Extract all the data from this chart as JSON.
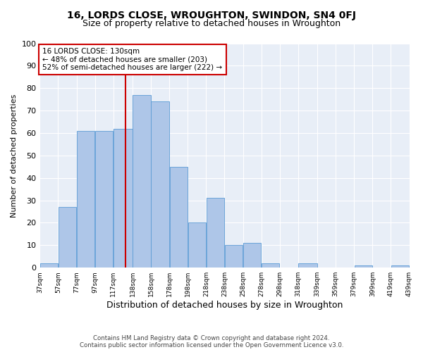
{
  "title": "16, LORDS CLOSE, WROUGHTON, SWINDON, SN4 0FJ",
  "subtitle": "Size of property relative to detached houses in Wroughton",
  "xlabel": "Distribution of detached houses by size in Wroughton",
  "ylabel": "Number of detached properties",
  "bar_edges": [
    37,
    57,
    77,
    97,
    117,
    138,
    158,
    178,
    198,
    218,
    238,
    258,
    278,
    298,
    318,
    339,
    359,
    379,
    399,
    419,
    439
  ],
  "bar_heights": [
    2,
    27,
    61,
    61,
    62,
    77,
    74,
    45,
    20,
    31,
    10,
    11,
    2,
    0,
    2,
    0,
    0,
    1,
    0,
    1
  ],
  "bar_color": "#aec6e8",
  "bar_edgecolor": "#5b9bd5",
  "property_size": 130,
  "vline_color": "#cc0000",
  "annotation_text": "16 LORDS CLOSE: 130sqm\n← 48% of detached houses are smaller (203)\n52% of semi-detached houses are larger (222) →",
  "annotation_box_edgecolor": "#cc0000",
  "annotation_fontsize": 7.5,
  "ylim": [
    0,
    100
  ],
  "yticks": [
    0,
    10,
    20,
    30,
    40,
    50,
    60,
    70,
    80,
    90,
    100
  ],
  "background_color": "#e8eef7",
  "footer_line1": "Contains HM Land Registry data © Crown copyright and database right 2024.",
  "footer_line2": "Contains public sector information licensed under the Open Government Licence v3.0.",
  "title_fontsize": 10,
  "subtitle_fontsize": 9,
  "ylabel_fontsize": 8,
  "xlabel_fontsize": 9
}
